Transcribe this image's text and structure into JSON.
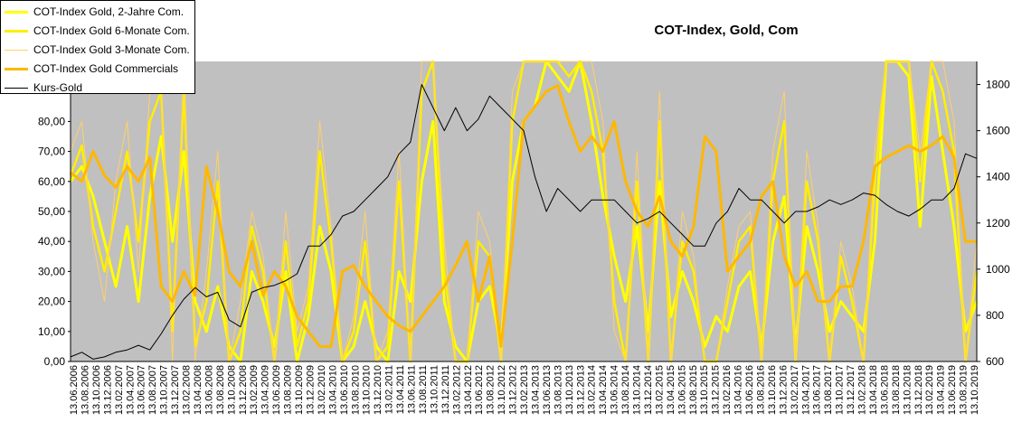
{
  "chart_data": {
    "type": "line",
    "title": "COT-Index, Gold, Com",
    "y_left": {
      "lim": [
        0,
        100
      ],
      "ticks": [
        "0,00",
        "10,00",
        "20,00",
        "30,00",
        "40,00",
        "50,00",
        "60,00",
        "70,00",
        "80,00"
      ]
    },
    "y_right": {
      "lim": [
        600,
        1900
      ],
      "ticks": [
        "600",
        "800",
        "1000",
        "1200",
        "1400",
        "1600",
        "1800"
      ]
    },
    "x_labels": [
      "13.06.2006",
      "13.08.2006",
      "13.10.2006",
      "13.12.2006",
      "13.02.2007",
      "13.04.2007",
      "13.06.2007",
      "13.08.2007",
      "13.10.2007",
      "13.12.2007",
      "13.02.2008",
      "13.04.2008",
      "13.06.2008",
      "13.08.2008",
      "13.10.2008",
      "13.12.2008",
      "13.02.2009",
      "13.04.2009",
      "13.06.2009",
      "13.08.2009",
      "13.10.2009",
      "13.12.2009",
      "13.02.2010",
      "13.04.2010",
      "13.06.2010",
      "13.08.2010",
      "13.10.2010",
      "13.12.2010",
      "13.02.2011",
      "13.04.2011",
      "13.06.2011",
      "13.08.2011",
      "13.10.2011",
      "13.12.2011",
      "13.02.2012",
      "13.04.2012",
      "13.06.2012",
      "13.08.2012",
      "13.10.2012",
      "13.12.2012",
      "13.02.2013",
      "13.04.2013",
      "13.06.2013",
      "13.08.2013",
      "13.10.2013",
      "13.12.2013",
      "13.02.2014",
      "13.04.2014",
      "13.06.2014",
      "13.08.2014",
      "13.10.2014",
      "13.12.2014",
      "13.02.2015",
      "13.04.2015",
      "13.06.2015",
      "13.08.2015",
      "13.10.2015",
      "13.12.2015",
      "13.02.2016",
      "13.04.2016",
      "13.06.2016",
      "13.08.2016",
      "13.10.2016",
      "13.12.2016",
      "13.02.2017",
      "13.04.2017",
      "13.06.2017",
      "13.08.2017",
      "13.10.2017",
      "13.12.2017",
      "13.02.2018",
      "13.04.2018",
      "13.06.2018",
      "13.08.2018",
      "13.10.2018",
      "13.12.2018",
      "13.02.2019",
      "13.04.2019",
      "13.06.2019",
      "13.08.2019",
      "13.10.2019"
    ],
    "grid": false,
    "plot_background": "#c0c0c0",
    "legend_position": "top-left",
    "series": [
      {
        "name": "COT-Index Gold, 2-Jahre  Com.",
        "color": "#ffff00",
        "axis": "left",
        "values": [
          60,
          65,
          55,
          40,
          25,
          45,
          20,
          55,
          75,
          40,
          70,
          20,
          10,
          25,
          5,
          0,
          30,
          20,
          5,
          30,
          0,
          15,
          45,
          30,
          0,
          5,
          20,
          5,
          0,
          30,
          20,
          60,
          80,
          20,
          5,
          0,
          20,
          25,
          5,
          60,
          80,
          85,
          100,
          95,
          90,
          100,
          80,
          55,
          35,
          20,
          45,
          10,
          60,
          15,
          30,
          20,
          5,
          15,
          10,
          25,
          30,
          5,
          40,
          55,
          5,
          45,
          30,
          10,
          20,
          15,
          10,
          40,
          100,
          100,
          95,
          45,
          95,
          70,
          45,
          10,
          20
        ]
      },
      {
        "name": "COT-Index Gold 6-Monate Com.",
        "color": "#ffee00",
        "axis": "left",
        "values": [
          62,
          72,
          45,
          30,
          50,
          70,
          40,
          80,
          90,
          10,
          90,
          5,
          20,
          60,
          0,
          10,
          45,
          30,
          0,
          40,
          5,
          20,
          70,
          40,
          0,
          10,
          40,
          0,
          5,
          60,
          0,
          90,
          100,
          30,
          0,
          0,
          40,
          35,
          0,
          80,
          100,
          100,
          100,
          100,
          95,
          100,
          90,
          70,
          20,
          0,
          60,
          0,
          80,
          0,
          40,
          30,
          0,
          0,
          20,
          40,
          45,
          0,
          60,
          80,
          0,
          60,
          40,
          0,
          35,
          20,
          0,
          60,
          100,
          100,
          100,
          60,
          100,
          90,
          70,
          0,
          30
        ]
      },
      {
        "name": "COT-Index Gold 3-Monate Com.",
        "color": "#ffd06a",
        "axis": "left",
        "values": [
          70,
          80,
          40,
          20,
          60,
          80,
          30,
          90,
          95,
          0,
          100,
          0,
          30,
          70,
          0,
          20,
          50,
          35,
          0,
          50,
          10,
          25,
          80,
          45,
          0,
          15,
          50,
          0,
          10,
          70,
          0,
          100,
          100,
          40,
          0,
          0,
          50,
          40,
          0,
          90,
          100,
          100,
          100,
          100,
          100,
          100,
          100,
          80,
          10,
          0,
          70,
          0,
          90,
          0,
          50,
          35,
          0,
          0,
          25,
          45,
          50,
          0,
          70,
          90,
          0,
          70,
          45,
          0,
          40,
          25,
          0,
          70,
          100,
          100,
          100,
          70,
          100,
          100,
          80,
          0,
          40
        ]
      },
      {
        "name": "COT-Index Gold Commercials",
        "color": "#ffb800",
        "axis": "left",
        "values": [
          63,
          60,
          70,
          62,
          58,
          65,
          60,
          68,
          25,
          20,
          30,
          22,
          65,
          50,
          30,
          25,
          40,
          22,
          30,
          25,
          15,
          10,
          5,
          5,
          30,
          32,
          25,
          20,
          15,
          12,
          10,
          15,
          20,
          25,
          32,
          40,
          20,
          35,
          5,
          40,
          80,
          85,
          90,
          92,
          80,
          70,
          75,
          70,
          80,
          60,
          50,
          45,
          55,
          40,
          35,
          45,
          75,
          70,
          30,
          35,
          40,
          55,
          60,
          35,
          25,
          30,
          20,
          20,
          25,
          25,
          40,
          65,
          68,
          70,
          72,
          70,
          72,
          75,
          68,
          40,
          40
        ]
      },
      {
        "name": "Kurs-Gold",
        "color": "#000000",
        "axis": "right",
        "values": [
          620,
          640,
          610,
          620,
          640,
          650,
          670,
          650,
          720,
          800,
          870,
          920,
          880,
          900,
          780,
          750,
          900,
          920,
          930,
          950,
          980,
          1100,
          1100,
          1150,
          1230,
          1250,
          1300,
          1350,
          1400,
          1500,
          1550,
          1800,
          1700,
          1600,
          1700,
          1600,
          1650,
          1750,
          1700,
          1650,
          1600,
          1400,
          1250,
          1350,
          1300,
          1250,
          1300,
          1300,
          1300,
          1250,
          1200,
          1220,
          1250,
          1200,
          1150,
          1100,
          1100,
          1200,
          1250,
          1350,
          1300,
          1300,
          1250,
          1200,
          1250,
          1250,
          1270,
          1300,
          1280,
          1300,
          1330,
          1320,
          1280,
          1250,
          1230,
          1260,
          1300,
          1300,
          1350,
          1500,
          1480
        ]
      }
    ]
  }
}
